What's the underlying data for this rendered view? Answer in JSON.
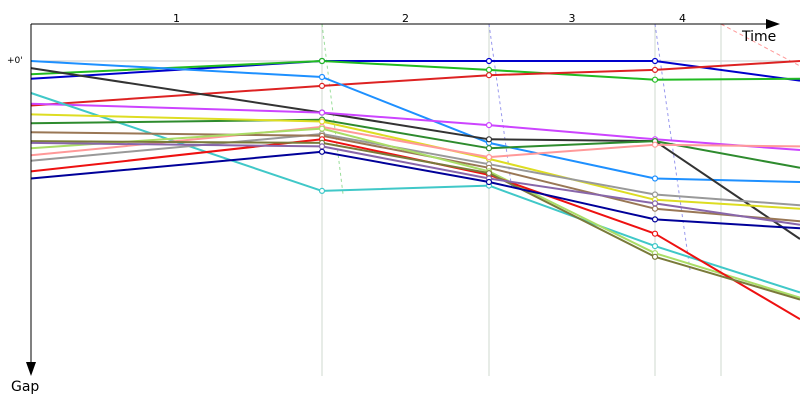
{
  "chart_data": {
    "type": "line",
    "xlabel": "Time",
    "ylabel": "Gap",
    "laps": [
      "1",
      "2",
      "3",
      "4"
    ],
    "y_tick_label": "+0'",
    "grid": true,
    "series": [
      {
        "color": "#0000cc",
        "points": [
          [
            0.0,
            -1.0
          ],
          [
            1.0,
            0.0
          ],
          [
            2.0,
            0.0
          ],
          [
            3.0,
            0.0
          ],
          [
            4.0,
            -1.1
          ]
        ]
      },
      {
        "color": "#22bb22",
        "points": [
          [
            0.0,
            -0.75
          ],
          [
            1.0,
            0.0
          ],
          [
            2.0,
            -0.5
          ],
          [
            3.0,
            -1.05
          ],
          [
            4.0,
            -1.0
          ]
        ]
      },
      {
        "color": "#dd2222",
        "points": [
          [
            0.0,
            -2.5
          ],
          [
            1.0,
            -1.4
          ],
          [
            2.0,
            -0.8
          ],
          [
            3.0,
            -0.5
          ],
          [
            4.0,
            0.0
          ]
        ]
      },
      {
        "color": "#1e90ff",
        "points": [
          [
            0.0,
            0.0
          ],
          [
            1.0,
            -0.9
          ],
          [
            2.0,
            -4.6
          ],
          [
            3.0,
            -6.6
          ],
          [
            4.0,
            -6.8
          ]
        ]
      },
      {
        "color": "#333333",
        "points": [
          [
            0.0,
            -0.4
          ],
          [
            1.0,
            -2.9
          ],
          [
            2.0,
            -4.4
          ],
          [
            3.0,
            -4.5
          ],
          [
            4.0,
            -10.0
          ]
        ]
      },
      {
        "color": "#cc44ff",
        "points": [
          [
            0.0,
            -2.4
          ],
          [
            1.0,
            -2.9
          ],
          [
            2.0,
            -3.6
          ],
          [
            3.0,
            -4.4
          ],
          [
            4.0,
            -5.0
          ]
        ]
      },
      {
        "color": "#40c8c8",
        "points": [
          [
            0.0,
            -1.8
          ],
          [
            1.0,
            -7.3
          ],
          [
            2.0,
            -7.0
          ],
          [
            3.0,
            -10.4
          ],
          [
            4.0,
            -13.0
          ]
        ]
      },
      {
        "color": "#2e8b2e",
        "points": [
          [
            0.0,
            -3.5
          ],
          [
            1.0,
            -3.3
          ],
          [
            2.0,
            -4.9
          ],
          [
            3.0,
            -4.5
          ],
          [
            4.0,
            -6.0
          ]
        ]
      },
      {
        "color": "#dddd22",
        "points": [
          [
            0.0,
            -3.0
          ],
          [
            1.0,
            -3.4
          ],
          [
            2.0,
            -5.5
          ],
          [
            3.0,
            -7.8
          ],
          [
            4.0,
            -8.3
          ]
        ]
      },
      {
        "color": "#999999",
        "points": [
          [
            0.0,
            -5.6
          ],
          [
            1.0,
            -4.1
          ],
          [
            2.0,
            -5.8
          ],
          [
            3.0,
            -7.5
          ],
          [
            4.0,
            -8.1
          ]
        ]
      },
      {
        "color": "#ff9999",
        "points": [
          [
            0.0,
            -5.3
          ],
          [
            1.0,
            -3.7
          ],
          [
            2.0,
            -5.4
          ],
          [
            3.0,
            -4.7
          ],
          [
            4.0,
            -4.8
          ]
        ]
      },
      {
        "color": "#997755",
        "points": [
          [
            0.0,
            -4.0
          ],
          [
            1.0,
            -4.2
          ],
          [
            2.0,
            -6.0
          ],
          [
            3.0,
            -8.3
          ],
          [
            4.0,
            -9.0
          ]
        ]
      },
      {
        "color": "#aadd66",
        "points": [
          [
            0.0,
            -4.9
          ],
          [
            1.0,
            -3.8
          ],
          [
            2.0,
            -6.2
          ],
          [
            3.0,
            -10.8
          ],
          [
            4.0,
            -13.3
          ]
        ]
      },
      {
        "color": "#ee1111",
        "points": [
          [
            0.0,
            -6.2
          ],
          [
            1.0,
            -4.4
          ],
          [
            2.0,
            -6.4
          ],
          [
            3.0,
            -9.7
          ],
          [
            4.0,
            -14.5
          ]
        ]
      },
      {
        "color": "#7a7a3a",
        "points": [
          [
            0.0,
            -4.5
          ],
          [
            1.0,
            -4.6
          ],
          [
            2.0,
            -6.3
          ],
          [
            3.0,
            -11.0
          ],
          [
            4.0,
            -13.4
          ]
        ]
      },
      {
        "color": "#8866aa",
        "points": [
          [
            0.0,
            -4.6
          ],
          [
            1.0,
            -4.8
          ],
          [
            2.0,
            -6.6
          ],
          [
            3.0,
            -8.0
          ],
          [
            4.0,
            -9.2
          ]
        ]
      },
      {
        "color": "#000099",
        "points": [
          [
            0.0,
            -6.6
          ],
          [
            1.0,
            -5.1
          ],
          [
            2.0,
            -6.8
          ],
          [
            3.0,
            -8.9
          ],
          [
            4.0,
            -9.4
          ]
        ]
      }
    ]
  }
}
